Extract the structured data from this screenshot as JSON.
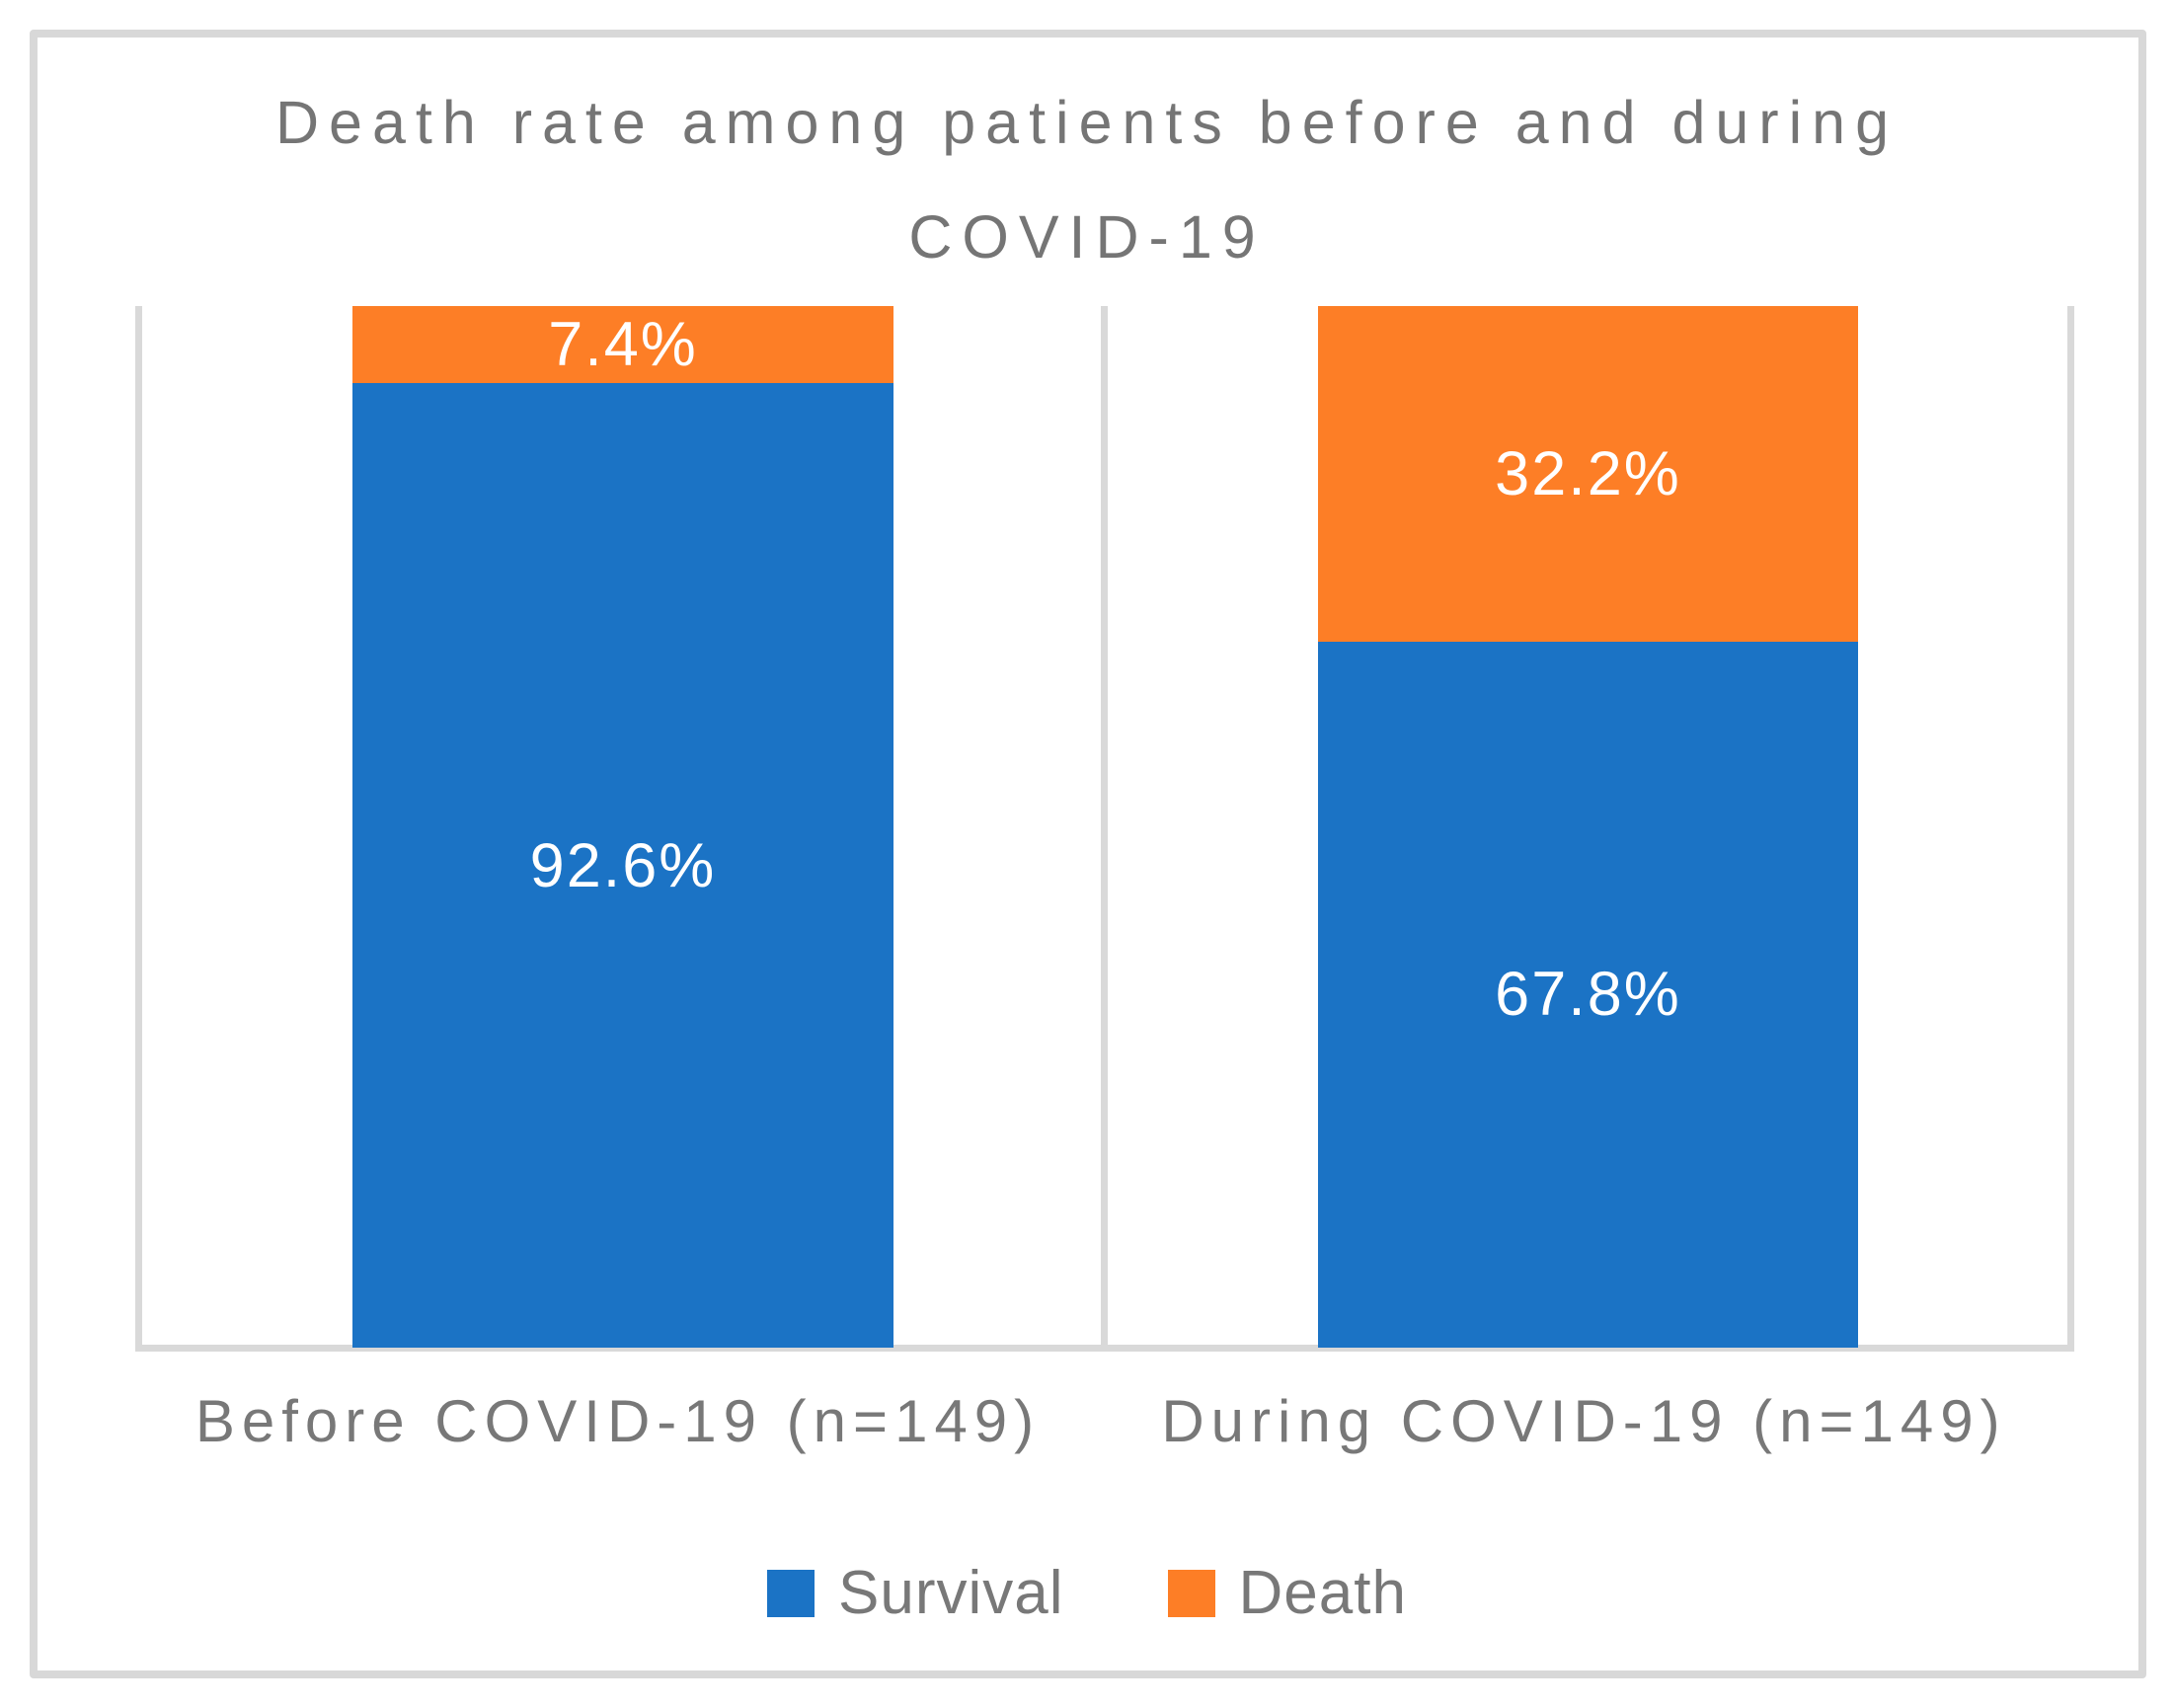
{
  "title": {
    "lines": [
      "Death rate among patients before and during",
      "COVID-19"
    ]
  },
  "colors": {
    "survival_blue": "#1b73c5",
    "death_orange": "#fd7e26",
    "axis_gray": "#d9d9d9",
    "text_gray": "#787878",
    "data_label_white": "#ffffff"
  },
  "chart_data": {
    "type": "bar",
    "subtype": "100%-stacked-column",
    "title": "Death rate among patients before and during COVID-19",
    "categories": [
      "Before COVID-19 (n=149)",
      "During COVID-19 (n=149)"
    ],
    "series": [
      {
        "name": "Survival",
        "color": "#1b73c5",
        "values": [
          92.6,
          67.8
        ],
        "labels": [
          "92.6%",
          "67.8%"
        ]
      },
      {
        "name": "Death",
        "color": "#fd7e26",
        "values": [
          7.4,
          32.2
        ],
        "labels": [
          "7.4%",
          "32.2%"
        ]
      }
    ],
    "xlabel": "",
    "ylabel": "",
    "ylim": [
      0,
      100
    ],
    "gridlines": false,
    "legend_position": "bottom"
  },
  "legend": {
    "items": [
      {
        "label": "Survival",
        "color": "#1b73c5"
      },
      {
        "label": "Death",
        "color": "#fd7e26"
      }
    ]
  }
}
